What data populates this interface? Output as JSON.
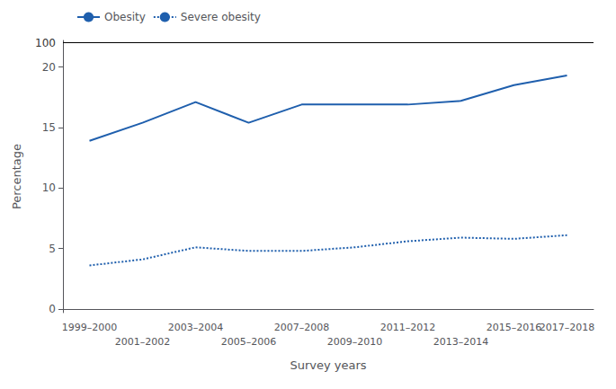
{
  "chart_data": {
    "type": "line",
    "categories": [
      "1999–2000",
      "2001–2002",
      "2003–2004",
      "2005–2006",
      "2007–2008",
      "2009–2010",
      "2011–2012",
      "2013–2014",
      "2015–2016",
      "2017–2018"
    ],
    "series": [
      {
        "name": "Obesity",
        "color": "#1F5FAD",
        "line_style": "solid",
        "values": [
          13.9,
          15.4,
          17.1,
          15.4,
          16.9,
          16.9,
          16.9,
          17.2,
          18.5,
          19.3
        ]
      },
      {
        "name": "Severe obesity",
        "color": "#1F5FAD",
        "line_style": "dotted",
        "values": [
          3.6,
          4.1,
          5.1,
          4.8,
          4.8,
          5.1,
          5.6,
          5.9,
          5.8,
          6.1
        ]
      }
    ],
    "xlabel": "Survey years",
    "ylabel": "Percentage",
    "ylim": [
      -0.3,
      22.2
    ],
    "yticks": [
      0,
      5,
      10,
      15,
      20
    ],
    "annotations": [
      {
        "text": "100",
        "y": 22
      }
    ],
    "legend": "upper left",
    "grid": false
  }
}
